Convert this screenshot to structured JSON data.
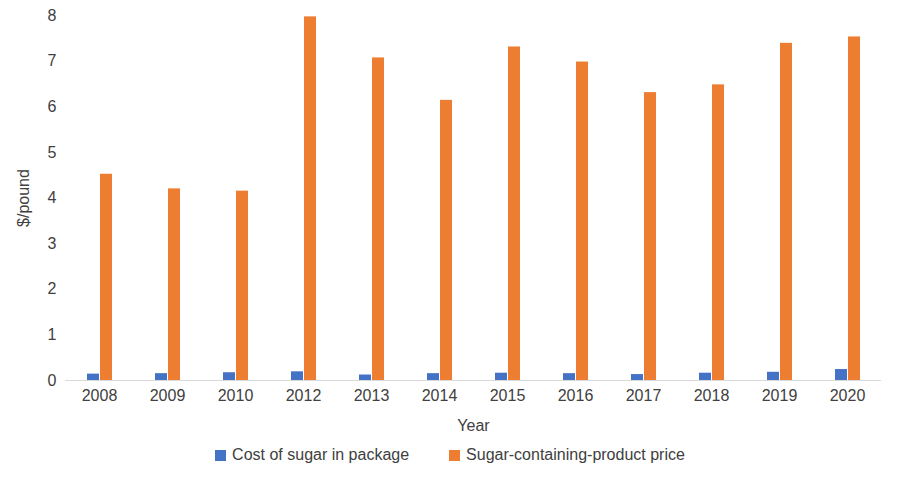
{
  "chart_data": {
    "type": "bar",
    "x_label": "Year",
    "y_label": "$/pound",
    "categories": [
      "2008",
      "2009",
      "2010",
      "2012",
      "2013",
      "2014",
      "2015",
      "2016",
      "2017",
      "2018",
      "2019",
      "2020"
    ],
    "series": [
      {
        "name": "Cost of sugar in package",
        "color": "#4472c4",
        "values": [
          0.14,
          0.15,
          0.17,
          0.19,
          0.12,
          0.15,
          0.16,
          0.15,
          0.13,
          0.16,
          0.18,
          0.24
        ]
      },
      {
        "name": "Sugar-containing-product price",
        "color": "#ed7d31",
        "values": [
          4.52,
          4.2,
          4.15,
          7.97,
          7.07,
          6.14,
          7.31,
          6.98,
          6.31,
          6.48,
          7.39,
          7.53
        ]
      }
    ],
    "ylim": [
      0,
      8
    ],
    "yticks": [
      0,
      1,
      2,
      3,
      4,
      5,
      6,
      7,
      8
    ],
    "grid": false,
    "legend": "bottom"
  }
}
